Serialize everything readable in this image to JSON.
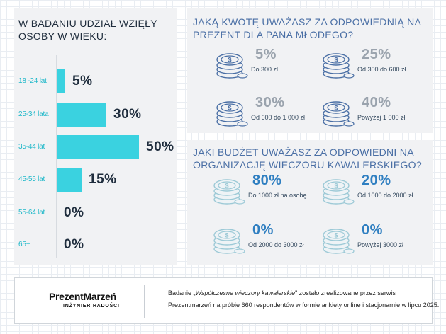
{
  "age_section": {
    "title": "W BADANIU UDZIAŁ WZIĘŁY OSOBY W WIEKU:",
    "groups": [
      {
        "label": "18 -24 lat",
        "pct_text": "5%"
      },
      {
        "label": "25-34  lata",
        "pct_text": "30%"
      },
      {
        "label": "35-44 lat",
        "pct_text": "50%"
      },
      {
        "label": "45-55 lat",
        "pct_text": "15%"
      },
      {
        "label": "55-64 lat",
        "pct_text": "0%"
      },
      {
        "label": "65+",
        "pct_text": "0%"
      }
    ]
  },
  "gift_section": {
    "title": "JAKĄ KWOTĘ UWAŻASZ ZA ODPOWIEDNIĄ NA PREZENT DLA PANA MŁODEGO?",
    "items": [
      {
        "pct_text": "5%",
        "desc": "Do 300 zł"
      },
      {
        "pct_text": "25%",
        "desc": "Od 300 do 600 zł"
      },
      {
        "pct_text": "30%",
        "desc": "Od 600 do 1 000 zł"
      },
      {
        "pct_text": "40%",
        "desc": "Powyżej 1 000 zł"
      }
    ]
  },
  "budget_section": {
    "title": "JAKI BUDŻET UWAŻASZ ZA ODPOWIEDNI NA ORGANIZACJĘ WIECZORU KAWALERSKIEGO?",
    "items": [
      {
        "pct_text": "80%",
        "desc": "Do 1000 zł na osobę"
      },
      {
        "pct_text": "20%",
        "desc": "Od 1000 do 2000 zł"
      },
      {
        "pct_text": "0%",
        "desc": "Od 2000 do 3000 zł"
      },
      {
        "pct_text": "0%",
        "desc": "Powyżej 3000 zł"
      }
    ]
  },
  "footer": {
    "brand_name": "PrezentMarzeń",
    "brand_tagline": "INŻYNIER RADOŚCI",
    "line1_prefix": "Badanie „",
    "line1_title": "Współczesne wieczory kawalerskie",
    "line1_suffix": "\" zostało zrealizowane przez serwis",
    "line2": "Prezentmarzeń na próbie 660 respondentów w formie ankiety online i stacjonarnie w lipcu 2025."
  },
  "colors": {
    "bar": "#3ad2e0",
    "age_label": "#1fb8c9",
    "gift_coin": "#4a6fa5",
    "budget_coin": "#9cc9d6",
    "budget_pct": "#2f7fc1"
  },
  "icons": {
    "coin": "coin-stack-icon"
  },
  "chart_data": [
    {
      "type": "bar",
      "orientation": "horizontal",
      "title": "W BADANIU UDZIAŁ WZIĘŁY OSOBY W WIEKU:",
      "categories": [
        "18 -24 lat",
        "25-34  lata",
        "35-44 lat",
        "45-55 lat",
        "55-64 lat",
        "65+"
      ],
      "values": [
        5,
        30,
        50,
        15,
        0,
        0
      ],
      "unit": "%",
      "xlim": [
        0,
        50
      ]
    },
    {
      "type": "table",
      "title": "JAKĄ KWOTĘ UWAŻASZ ZA ODPOWIEDNIĄ NA PREZENT DLA PANA MŁODEGO?",
      "categories": [
        "Do 300 zł",
        "Od 300 do 600 zł",
        "Od 600 do 1 000 zł",
        "Powyżej 1 000 zł"
      ],
      "values": [
        5,
        25,
        30,
        40
      ],
      "unit": "%"
    },
    {
      "type": "table",
      "title": "JAKI BUDŻET UWAŻASZ ZA ODPOWIEDNI NA ORGANIZACJĘ WIECZORU KAWALERSKIEGO?",
      "categories": [
        "Do 1000 zł na osobę",
        "Od 1000 do 2000 zł",
        "Od 2000 do 3000 zł",
        "Powyżej 3000 zł"
      ],
      "values": [
        80,
        20,
        0,
        0
      ],
      "unit": "%"
    }
  ]
}
